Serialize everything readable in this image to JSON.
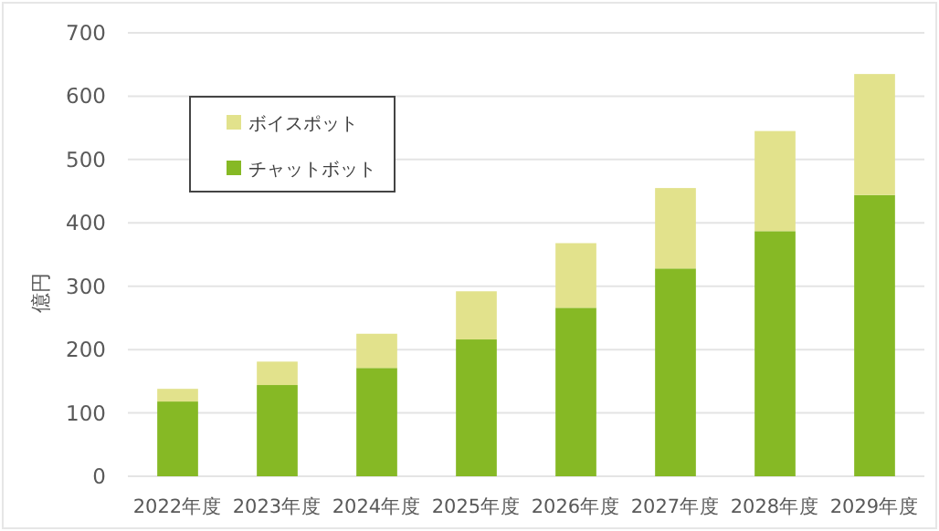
{
  "chart_data": {
    "type": "bar",
    "stacked": true,
    "ylabel": "億円",
    "categories": [
      "2022年度",
      "2023年度",
      "2024年度",
      "2025年度",
      "2026年度",
      "2027年度",
      "2028年度",
      "2029年度"
    ],
    "series": [
      {
        "name": "チャットボット",
        "color": "#86b925",
        "values": [
          118,
          144,
          171,
          216,
          266,
          328,
          387,
          444
        ]
      },
      {
        "name": "ボイスポット",
        "color": "#e2e28c",
        "values": [
          20,
          37,
          54,
          76,
          102,
          127,
          158,
          191
        ]
      }
    ],
    "ylim": [
      0,
      700
    ],
    "yticks": [
      0,
      100,
      200,
      300,
      400,
      500,
      600,
      700
    ],
    "grid": "y",
    "legend": "top left"
  }
}
